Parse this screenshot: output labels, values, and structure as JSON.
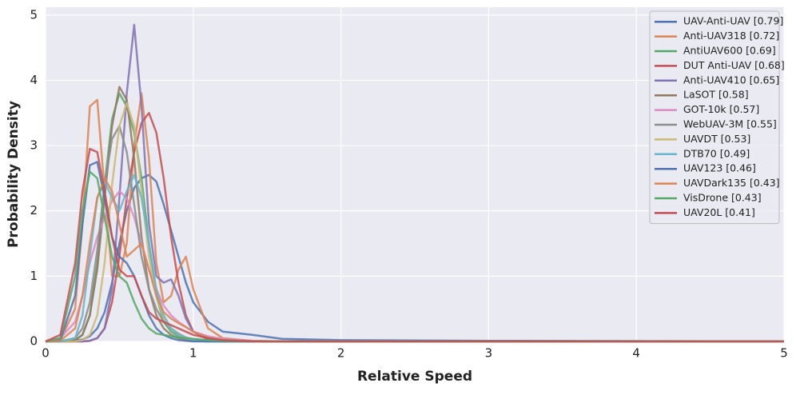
{
  "chart_data": {
    "type": "line",
    "xlabel": "Relative Speed",
    "ylabel": "Probability Density",
    "xlim": [
      0,
      5
    ],
    "ylim": [
      0,
      5.12
    ],
    "xticks": [
      0,
      1,
      2,
      3,
      4,
      5
    ],
    "yticks": [
      0,
      1,
      2,
      3,
      4,
      5
    ],
    "grid": true,
    "legend": "upper right",
    "x": [
      0,
      0.1,
      0.2,
      0.25,
      0.3,
      0.35,
      0.4,
      0.45,
      0.5,
      0.55,
      0.6,
      0.65,
      0.7,
      0.75,
      0.8,
      0.85,
      0.9,
      0.95,
      1.0,
      1.1,
      1.2,
      1.4,
      1.6,
      2,
      3,
      5
    ],
    "series": [
      {
        "name": "UAV-Anti-UAV [0.79]",
        "color": "#4c72b0",
        "values": [
          0,
          0,
          0.01,
          0.03,
          0.08,
          0.2,
          0.45,
          0.9,
          1.5,
          2.0,
          2.35,
          2.5,
          2.55,
          2.45,
          2.1,
          1.7,
          1.3,
          0.9,
          0.6,
          0.3,
          0.15,
          0.1,
          0.04,
          0.02,
          0.01,
          0
        ]
      },
      {
        "name": "Anti-UAV318 [0.72]",
        "color": "#dd8452",
        "values": [
          0,
          0.02,
          0.5,
          1.8,
          3.6,
          3.7,
          2.3,
          1.0,
          1.0,
          1.5,
          3.0,
          3.8,
          2.8,
          1.2,
          0.6,
          0.7,
          1.1,
          1.3,
          0.8,
          0.2,
          0.05,
          0.01,
          0,
          0,
          0,
          0
        ]
      },
      {
        "name": "AntiUAV600 [0.69]",
        "color": "#55a868",
        "values": [
          0,
          0,
          0.02,
          0.1,
          0.4,
          1.2,
          2.4,
          3.4,
          3.8,
          3.6,
          3.2,
          2.5,
          1.5,
          0.7,
          0.3,
          0.15,
          0.08,
          0.05,
          0.03,
          0.01,
          0,
          0,
          0,
          0,
          0,
          0
        ]
      },
      {
        "name": "DUT Anti-UAV [0.68]",
        "color": "#c44e52",
        "values": [
          0,
          0,
          0,
          0,
          0.01,
          0.05,
          0.2,
          0.6,
          1.3,
          2.2,
          2.9,
          3.35,
          3.5,
          3.2,
          2.5,
          1.6,
          0.9,
          0.4,
          0.15,
          0.03,
          0.01,
          0,
          0,
          0,
          0,
          0
        ]
      },
      {
        "name": "Anti-UAV410 [0.65]",
        "color": "#8172b3",
        "values": [
          0,
          0,
          0,
          0,
          0.01,
          0.05,
          0.2,
          0.8,
          2.2,
          3.8,
          4.85,
          3.6,
          1.8,
          1.0,
          0.9,
          0.95,
          0.7,
          0.35,
          0.15,
          0.04,
          0.01,
          0,
          0,
          0,
          0,
          0
        ]
      },
      {
        "name": "LaSOT [0.58]",
        "color": "#937860",
        "values": [
          0,
          0,
          0.02,
          0.1,
          0.4,
          1.1,
          2.2,
          3.3,
          3.9,
          3.7,
          2.8,
          1.6,
          0.8,
          0.4,
          0.2,
          0.1,
          0.05,
          0.02,
          0.01,
          0,
          0,
          0,
          0,
          0,
          0,
          0
        ]
      },
      {
        "name": "GOT-10k [0.57]",
        "color": "#da8bc3",
        "values": [
          0,
          0.05,
          0.3,
          0.7,
          1.2,
          1.6,
          1.9,
          2.15,
          2.3,
          2.2,
          1.9,
          1.5,
          1.1,
          0.8,
          0.55,
          0.4,
          0.3,
          0.22,
          0.15,
          0.08,
          0.04,
          0.01,
          0,
          0,
          0,
          0
        ]
      },
      {
        "name": "WebUAV-3M [0.55]",
        "color": "#8c8c8c",
        "values": [
          0,
          0,
          0.05,
          0.2,
          0.6,
          1.4,
          2.4,
          3.1,
          3.3,
          2.9,
          2.1,
          1.3,
          0.8,
          0.5,
          0.3,
          0.2,
          0.12,
          0.06,
          0.03,
          0.01,
          0,
          0,
          0,
          0,
          0,
          0
        ]
      },
      {
        "name": "UAVDT [0.53]",
        "color": "#ccb974",
        "values": [
          0,
          0,
          0,
          0.02,
          0.1,
          0.4,
          1.2,
          2.4,
          3.3,
          3.65,
          3.3,
          2.3,
          1.3,
          0.7,
          0.35,
          0.2,
          0.1,
          0.05,
          0.02,
          0.01,
          0,
          0,
          0,
          0,
          0,
          0
        ]
      },
      {
        "name": "DTB70 [0.49]",
        "color": "#64b5cd",
        "values": [
          0,
          0,
          0.05,
          0.4,
          1.3,
          2.2,
          2.45,
          2.2,
          2.0,
          2.3,
          2.55,
          2.2,
          1.5,
          0.8,
          0.4,
          0.2,
          0.1,
          0.05,
          0.02,
          0,
          0,
          0,
          0,
          0,
          0,
          0
        ]
      },
      {
        "name": "UAV123 [0.46]",
        "color": "#4c72b0",
        "values": [
          0,
          0.02,
          0.7,
          1.8,
          2.7,
          2.75,
          2.2,
          1.6,
          1.3,
          1.2,
          1.0,
          0.7,
          0.4,
          0.2,
          0.1,
          0.05,
          0.02,
          0.01,
          0,
          0,
          0,
          0,
          0,
          0,
          0,
          0
        ]
      },
      {
        "name": "UAVDark135 [0.43]",
        "color": "#dd8452",
        "values": [
          0,
          0.01,
          0.2,
          0.7,
          1.5,
          2.2,
          2.5,
          2.3,
          1.8,
          1.3,
          1.4,
          1.5,
          1.1,
          0.7,
          0.45,
          0.35,
          0.28,
          0.22,
          0.15,
          0.06,
          0.02,
          0,
          0,
          0,
          0,
          0
        ]
      },
      {
        "name": "VisDrone [0.43]",
        "color": "#55a868",
        "values": [
          0,
          0.05,
          1.0,
          2.0,
          2.6,
          2.5,
          1.9,
          1.3,
          1.0,
          0.9,
          0.6,
          0.35,
          0.2,
          0.12,
          0.1,
          0.08,
          0.06,
          0.05,
          0.04,
          0.02,
          0.01,
          0,
          0,
          0,
          0,
          0
        ]
      },
      {
        "name": "UAV20L [0.41]",
        "color": "#c44e52",
        "values": [
          0,
          0.1,
          1.2,
          2.3,
          2.95,
          2.9,
          2.3,
          1.6,
          1.1,
          1.0,
          1.0,
          0.7,
          0.45,
          0.35,
          0.3,
          0.25,
          0.2,
          0.15,
          0.1,
          0.05,
          0.02,
          0,
          0,
          0,
          0,
          0
        ]
      }
    ]
  }
}
